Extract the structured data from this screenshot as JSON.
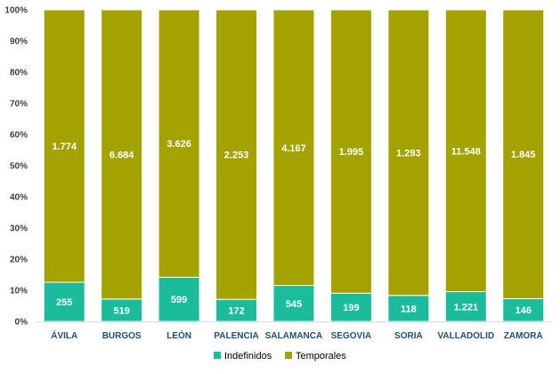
{
  "chart_data": {
    "type": "bar",
    "stacked": "percent",
    "categories": [
      "ÁVILA",
      "BURGOS",
      "LEÓN",
      "PALENCIA",
      "SALAMANCA",
      "SEGOVIA",
      "SORIA",
      "VALLADOLID",
      "ZAMORA"
    ],
    "series": [
      {
        "name": "Indefinidos",
        "color": "#1abc9c",
        "values": [
          255,
          519,
          599,
          172,
          545,
          199,
          118,
          1221,
          146
        ],
        "labels": [
          "255",
          "519",
          "599",
          "172",
          "545",
          "199",
          "118",
          "1.221",
          "146"
        ]
      },
      {
        "name": "Temporales",
        "color": "#a3a300",
        "values": [
          1774,
          6684,
          3626,
          2253,
          4167,
          1995,
          1293,
          11548,
          1845
        ],
        "labels": [
          "1.774",
          "6.684",
          "3.626",
          "2.253",
          "4.167",
          "1.995",
          "1.293",
          "11.548",
          "1.845"
        ]
      }
    ],
    "yticks": [
      "0%",
      "10%",
      "20%",
      "30%",
      "40%",
      "50%",
      "60%",
      "70%",
      "80%",
      "90%",
      "100%"
    ],
    "ylim": [
      0,
      100
    ],
    "grid": false,
    "legend": "bottom",
    "title": "",
    "xlabel": "",
    "ylabel": ""
  }
}
